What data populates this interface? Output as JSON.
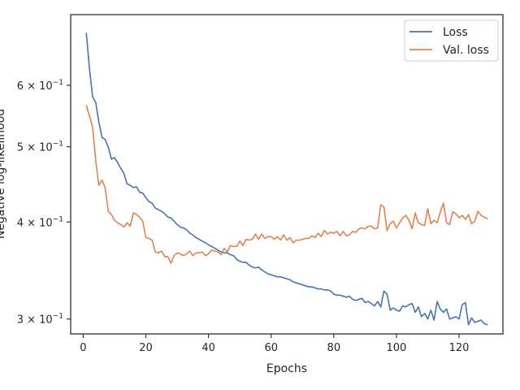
{
  "chart_data": {
    "type": "line",
    "title": "",
    "xlabel": "Epochs",
    "ylabel": "Negative log-likelihood",
    "yscale": "log",
    "xlim": [
      -4,
      134
    ],
    "ylim": [
      0.287,
      0.74
    ],
    "x_ticks": [
      0,
      20,
      40,
      60,
      80,
      100,
      120
    ],
    "y_ticks": [
      {
        "value": 0.3,
        "mantissa": "3",
        "exponent": "−1"
      },
      {
        "value": 0.4,
        "mantissa": "4",
        "exponent": "−1"
      },
      {
        "value": 0.5,
        "mantissa": "5",
        "exponent": "−1"
      },
      {
        "value": 0.6,
        "mantissa": "6",
        "exponent": "−1"
      }
    ],
    "tick_base": "10",
    "grid": false,
    "legend_position": "top-right",
    "series": [
      {
        "name": "Loss",
        "color": "#4c72b0",
        "x": [
          1,
          2,
          3,
          4,
          5,
          6,
          7,
          8,
          9,
          10,
          11,
          12,
          13,
          14,
          15,
          16,
          17,
          18,
          19,
          20,
          21,
          22,
          23,
          24,
          25,
          26,
          27,
          28,
          29,
          30,
          31,
          32,
          33,
          34,
          35,
          36,
          37,
          38,
          39,
          40,
          41,
          42,
          43,
          44,
          45,
          46,
          47,
          48,
          49,
          50,
          51,
          52,
          53,
          54,
          55,
          56,
          57,
          58,
          59,
          60,
          61,
          62,
          63,
          64,
          65,
          66,
          67,
          68,
          69,
          70,
          71,
          72,
          73,
          74,
          75,
          76,
          77,
          78,
          79,
          80,
          81,
          82,
          83,
          84,
          85,
          86,
          87,
          88,
          89,
          90,
          91,
          92,
          93,
          94,
          95,
          96,
          97,
          98,
          99,
          100,
          101,
          102,
          103,
          104,
          105,
          106,
          107,
          108,
          109,
          110,
          111,
          112,
          113,
          114,
          115,
          116,
          117,
          118,
          119,
          120,
          121,
          122,
          123,
          124,
          125,
          126,
          127,
          128,
          129
        ],
        "y": [
          0.7,
          0.63,
          0.58,
          0.57,
          0.538,
          0.514,
          0.511,
          0.5,
          0.482,
          0.484,
          0.477,
          0.469,
          0.462,
          0.448,
          0.446,
          0.443,
          0.444,
          0.437,
          0.436,
          0.43,
          0.425,
          0.423,
          0.417,
          0.415,
          0.413,
          0.41,
          0.406,
          0.405,
          0.401,
          0.397,
          0.394,
          0.393,
          0.391,
          0.387,
          0.385,
          0.382,
          0.38,
          0.378,
          0.376,
          0.374,
          0.372,
          0.37,
          0.368,
          0.366,
          0.365,
          0.365,
          0.363,
          0.362,
          0.358,
          0.356,
          0.355,
          0.355,
          0.352,
          0.35,
          0.349,
          0.35,
          0.347,
          0.345,
          0.343,
          0.342,
          0.341,
          0.34,
          0.34,
          0.339,
          0.338,
          0.337,
          0.335,
          0.334,
          0.333,
          0.332,
          0.331,
          0.33,
          0.33,
          0.329,
          0.328,
          0.328,
          0.327,
          0.327,
          0.326,
          0.323,
          0.322,
          0.322,
          0.321,
          0.32,
          0.321,
          0.318,
          0.317,
          0.318,
          0.319,
          0.315,
          0.316,
          0.314,
          0.312,
          0.316,
          0.311,
          0.326,
          0.323,
          0.308,
          0.31,
          0.308,
          0.307,
          0.312,
          0.311,
          0.313,
          0.314,
          0.306,
          0.311,
          0.302,
          0.305,
          0.3,
          0.308,
          0.299,
          0.316,
          0.309,
          0.306,
          0.309,
          0.3,
          0.301,
          0.302,
          0.3,
          0.313,
          0.315,
          0.295,
          0.301,
          0.297,
          0.298,
          0.299,
          0.296,
          0.295
        ]
      },
      {
        "name": "Val. loss",
        "color": "#dd8452",
        "x": [
          1,
          2,
          3,
          4,
          5,
          6,
          7,
          8,
          9,
          10,
          11,
          12,
          13,
          14,
          15,
          16,
          17,
          18,
          19,
          20,
          21,
          22,
          23,
          24,
          25,
          26,
          27,
          28,
          29,
          30,
          31,
          32,
          33,
          34,
          35,
          36,
          37,
          38,
          39,
          40,
          41,
          42,
          43,
          44,
          45,
          46,
          47,
          48,
          49,
          50,
          51,
          52,
          53,
          54,
          55,
          56,
          57,
          58,
          59,
          60,
          61,
          62,
          63,
          64,
          65,
          66,
          67,
          68,
          69,
          70,
          71,
          72,
          73,
          74,
          75,
          76,
          77,
          78,
          79,
          80,
          81,
          82,
          83,
          84,
          85,
          86,
          87,
          88,
          89,
          90,
          91,
          92,
          93,
          94,
          95,
          96,
          97,
          98,
          99,
          100,
          101,
          102,
          103,
          104,
          105,
          106,
          107,
          108,
          109,
          110,
          111,
          112,
          113,
          114,
          115,
          116,
          117,
          118,
          119,
          120,
          121,
          122,
          123,
          124,
          125,
          126,
          127,
          128,
          129
        ],
        "y": [
          0.565,
          0.548,
          0.53,
          0.48,
          0.446,
          0.453,
          0.443,
          0.413,
          0.409,
          0.402,
          0.399,
          0.397,
          0.394,
          0.399,
          0.395,
          0.411,
          0.409,
          0.406,
          0.401,
          0.382,
          0.381,
          0.379,
          0.366,
          0.365,
          0.367,
          0.361,
          0.361,
          0.354,
          0.362,
          0.365,
          0.364,
          0.362,
          0.364,
          0.367,
          0.362,
          0.365,
          0.365,
          0.366,
          0.362,
          0.364,
          0.368,
          0.367,
          0.366,
          0.363,
          0.37,
          0.366,
          0.373,
          0.372,
          0.372,
          0.378,
          0.373,
          0.38,
          0.379,
          0.38,
          0.386,
          0.38,
          0.386,
          0.381,
          0.383,
          0.383,
          0.38,
          0.383,
          0.379,
          0.385,
          0.379,
          0.382,
          0.376,
          0.379,
          0.379,
          0.38,
          0.381,
          0.381,
          0.384,
          0.382,
          0.387,
          0.383,
          0.39,
          0.386,
          0.388,
          0.387,
          0.389,
          0.384,
          0.389,
          0.384,
          0.385,
          0.389,
          0.388,
          0.392,
          0.393,
          0.392,
          0.395,
          0.395,
          0.392,
          0.393,
          0.421,
          0.418,
          0.39,
          0.398,
          0.401,
          0.393,
          0.399,
          0.405,
          0.408,
          0.402,
          0.392,
          0.411,
          0.399,
          0.397,
          0.396,
          0.416,
          0.398,
          0.402,
          0.399,
          0.412,
          0.423,
          0.399,
          0.397,
          0.412,
          0.41,
          0.405,
          0.408,
          0.403,
          0.409,
          0.398,
          0.401,
          0.413,
          0.408,
          0.406,
          0.404
        ]
      }
    ]
  }
}
